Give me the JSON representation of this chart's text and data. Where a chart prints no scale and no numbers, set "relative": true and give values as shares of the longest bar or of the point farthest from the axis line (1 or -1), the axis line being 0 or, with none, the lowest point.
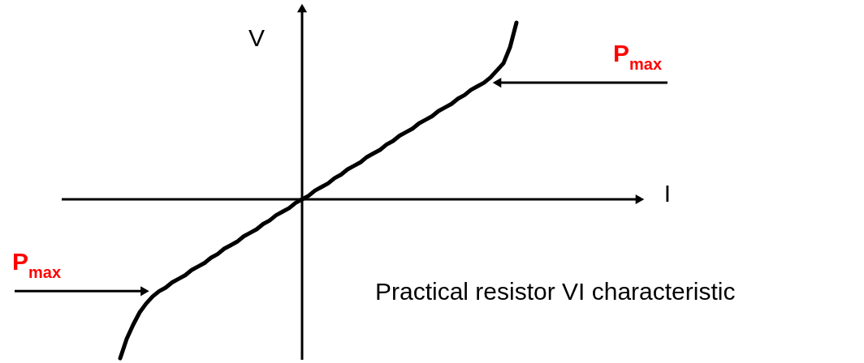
{
  "chart_data": {
    "type": "line",
    "relative": true,
    "color": "#000000",
    "xlabel": "I",
    "ylabel": "V",
    "categories": [
      null,
      null,
      null,
      null,
      null,
      null,
      null,
      null,
      null,
      null,
      null,
      null,
      null,
      null,
      null,
      null,
      null,
      null,
      null,
      null,
      null,
      null,
      null,
      null,
      null,
      null,
      null,
      null,
      null,
      null,
      null,
      null,
      null,
      null,
      null,
      null,
      null,
      null,
      null,
      null,
      null,
      null,
      null,
      null,
      null,
      null,
      null,
      null,
      null,
      null,
      null,
      null,
      null,
      null,
      null,
      null,
      null,
      null,
      null,
      null,
      null,
      null,
      null,
      null,
      null,
      null,
      null,
      null,
      null,
      null,
      null,
      null,
      null,
      null,
      null,
      null,
      null,
      null,
      null,
      null,
      null,
      null,
      null,
      null,
      null,
      null,
      null,
      null,
      null,
      null
    ],
    "values": [
      null,
      null,
      null,
      null,
      null,
      null,
      null,
      null,
      null,
      -0.9,
      -0.79,
      -0.71,
      -0.64,
      -0.59,
      -0.55,
      -0.52,
      -0.5,
      -0.47,
      -0.45,
      -0.43,
      -0.4,
      -0.38,
      -0.36,
      -0.33,
      -0.31,
      -0.28,
      -0.26,
      -0.24,
      -0.21,
      -0.19,
      -0.17,
      -0.14,
      -0.12,
      -0.09,
      -0.07,
      -0.05,
      -0.02,
      0,
      0.02,
      0.05,
      0.07,
      0.09,
      0.12,
      0.14,
      0.17,
      0.19,
      0.21,
      0.24,
      0.26,
      0.28,
      0.31,
      0.33,
      0.36,
      0.38,
      0.4,
      0.43,
      0.45,
      0.47,
      0.5,
      0.52,
      0.54,
      0.57,
      0.59,
      0.62,
      0.64,
      0.66,
      0.69,
      0.73,
      0.77,
      0.86,
      1.0,
      null,
      null,
      null,
      null,
      null,
      null,
      null,
      null,
      null,
      null,
      null,
      null,
      null,
      null,
      null,
      null,
      null,
      null,
      null
    ],
    "annotations": [
      "P$_{max}$",
      "P$_{max}$",
      "Practical resistor VI characteristic"
    ]
  }
}
